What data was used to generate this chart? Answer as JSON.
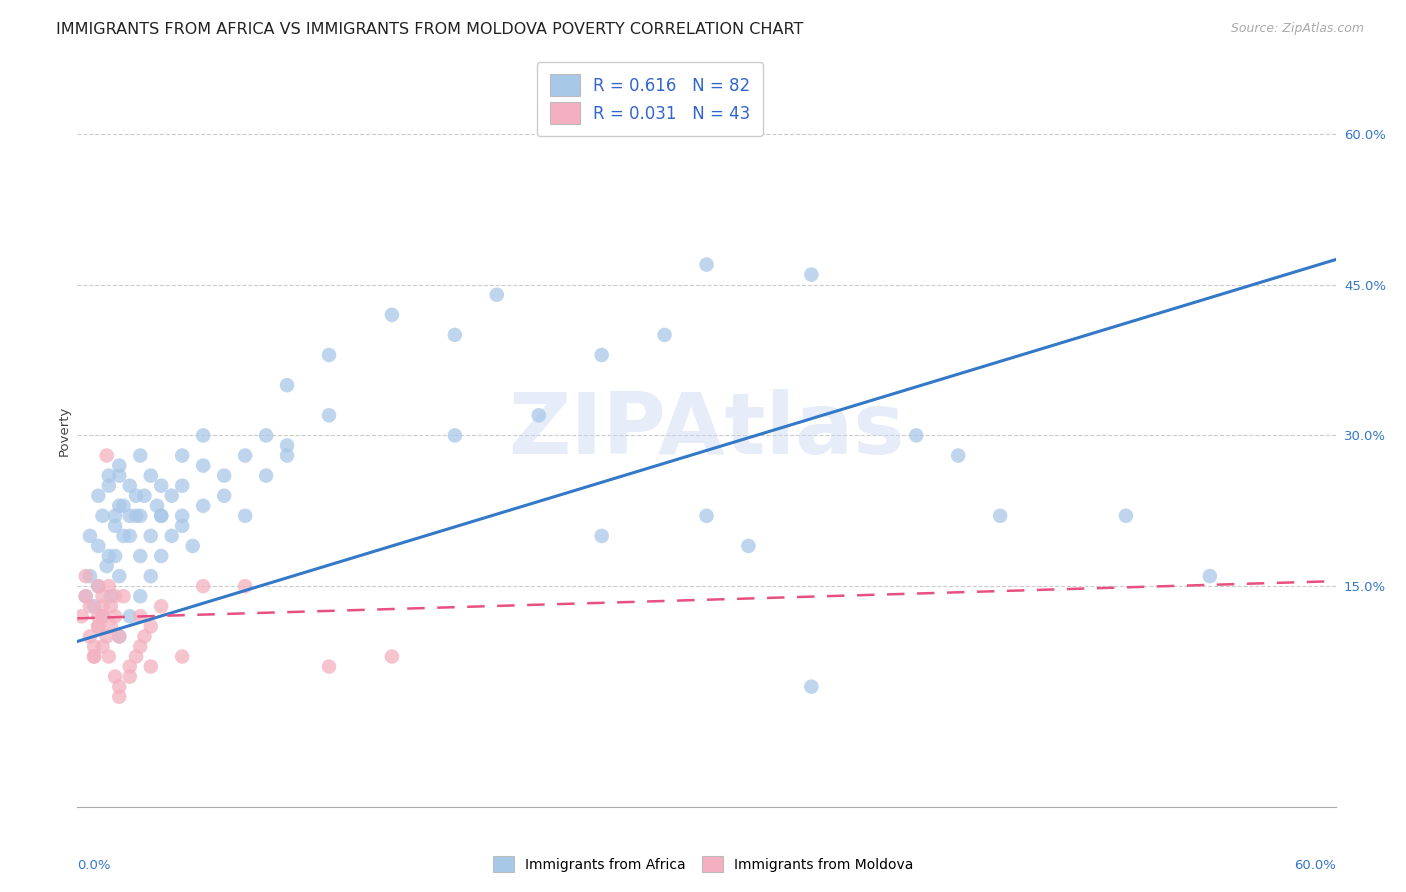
{
  "title": "IMMIGRANTS FROM AFRICA VS IMMIGRANTS FROM MOLDOVA POVERTY CORRELATION CHART",
  "source": "Source: ZipAtlas.com",
  "ylabel": "Poverty",
  "right_ytick_labels": [
    "60.0%",
    "45.0%",
    "30.0%",
    "15.0%"
  ],
  "right_ytick_vals": [
    0.6,
    0.45,
    0.3,
    0.15
  ],
  "xmin": 0.0,
  "xmax": 0.6,
  "ymin": -0.07,
  "ymax": 0.68,
  "africa_color": "#a8c8e8",
  "moldova_color": "#f4b0c0",
  "africa_line_color": "#3478c8",
  "moldova_line_color": "#e85080",
  "grid_color": "#cccccc",
  "watermark": "ZIPAtlas",
  "R_africa": "0.616",
  "N_africa": "82",
  "R_moldova": "0.031",
  "N_moldova": "43",
  "legend_label_color": "#3366cc",
  "africa_x": [
    0.004,
    0.006,
    0.008,
    0.01,
    0.012,
    0.014,
    0.016,
    0.018,
    0.02,
    0.006,
    0.01,
    0.012,
    0.015,
    0.018,
    0.02,
    0.022,
    0.025,
    0.01,
    0.015,
    0.018,
    0.02,
    0.022,
    0.025,
    0.028,
    0.03,
    0.015,
    0.02,
    0.025,
    0.028,
    0.03,
    0.032,
    0.035,
    0.038,
    0.04,
    0.02,
    0.025,
    0.03,
    0.035,
    0.04,
    0.045,
    0.05,
    0.03,
    0.035,
    0.04,
    0.045,
    0.05,
    0.055,
    0.06,
    0.04,
    0.05,
    0.06,
    0.07,
    0.08,
    0.09,
    0.1,
    0.05,
    0.06,
    0.07,
    0.08,
    0.09,
    0.1,
    0.12,
    0.1,
    0.12,
    0.15,
    0.18,
    0.2,
    0.18,
    0.22,
    0.25,
    0.28,
    0.3,
    0.35,
    0.4,
    0.42,
    0.44,
    0.5,
    0.54,
    0.25,
    0.3,
    0.32,
    0.35
  ],
  "africa_y": [
    0.14,
    0.16,
    0.13,
    0.15,
    0.12,
    0.17,
    0.14,
    0.18,
    0.16,
    0.2,
    0.19,
    0.22,
    0.18,
    0.21,
    0.23,
    0.2,
    0.22,
    0.24,
    0.25,
    0.22,
    0.26,
    0.23,
    0.2,
    0.24,
    0.22,
    0.26,
    0.27,
    0.25,
    0.22,
    0.28,
    0.24,
    0.26,
    0.23,
    0.25,
    0.1,
    0.12,
    0.14,
    0.16,
    0.18,
    0.2,
    0.22,
    0.18,
    0.2,
    0.22,
    0.24,
    0.21,
    0.19,
    0.23,
    0.22,
    0.25,
    0.27,
    0.24,
    0.22,
    0.26,
    0.28,
    0.28,
    0.3,
    0.26,
    0.28,
    0.3,
    0.29,
    0.32,
    0.35,
    0.38,
    0.42,
    0.4,
    0.44,
    0.3,
    0.32,
    0.38,
    0.4,
    0.47,
    0.46,
    0.3,
    0.28,
    0.22,
    0.22,
    0.16,
    0.2,
    0.22,
    0.19,
    0.05
  ],
  "moldova_x": [
    0.002,
    0.004,
    0.006,
    0.008,
    0.01,
    0.004,
    0.006,
    0.008,
    0.01,
    0.012,
    0.008,
    0.01,
    0.012,
    0.014,
    0.016,
    0.01,
    0.012,
    0.014,
    0.016,
    0.018,
    0.012,
    0.015,
    0.018,
    0.02,
    0.022,
    0.015,
    0.018,
    0.02,
    0.025,
    0.03,
    0.02,
    0.025,
    0.028,
    0.032,
    0.035,
    0.03,
    0.035,
    0.04,
    0.05,
    0.06,
    0.08,
    0.12,
    0.15
  ],
  "moldova_y": [
    0.12,
    0.14,
    0.1,
    0.08,
    0.11,
    0.16,
    0.13,
    0.09,
    0.15,
    0.12,
    0.08,
    0.11,
    0.14,
    0.1,
    0.13,
    0.12,
    0.09,
    0.28,
    0.11,
    0.14,
    0.13,
    0.15,
    0.12,
    0.1,
    0.14,
    0.08,
    0.06,
    0.05,
    0.07,
    0.09,
    0.04,
    0.06,
    0.08,
    0.1,
    0.07,
    0.12,
    0.11,
    0.13,
    0.08,
    0.15,
    0.15,
    0.07,
    0.08
  ],
  "africa_regline_x": [
    0.0,
    0.6
  ],
  "africa_regline_y": [
    0.095,
    0.475
  ],
  "moldova_regline_x": [
    0.0,
    0.6
  ],
  "moldova_regline_y": [
    0.118,
    0.155
  ],
  "background_color": "#ffffff",
  "title_fontsize": 11.5,
  "ylabel_fontsize": 9.5,
  "tick_fontsize": 9.5,
  "source_fontsize": 9,
  "bottom_legend_label_africa": "Immigrants from Africa",
  "bottom_legend_label_moldova": "Immigrants from Moldova"
}
